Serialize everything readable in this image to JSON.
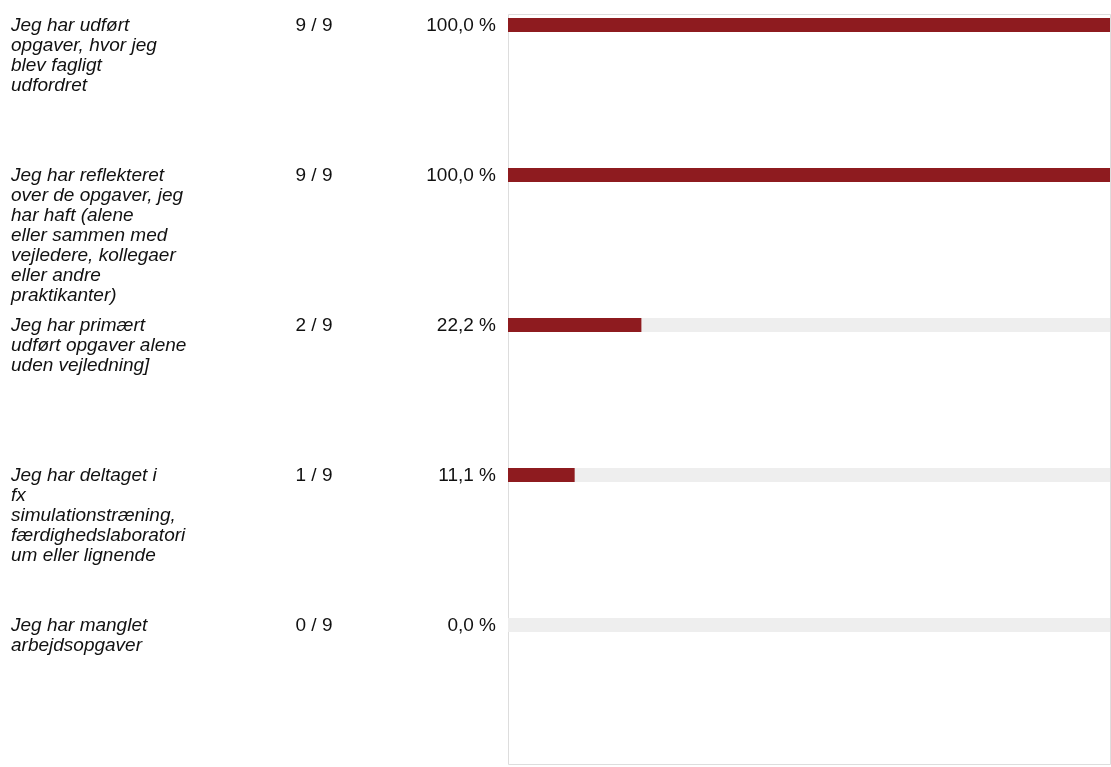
{
  "chart_data": {
    "type": "bar",
    "orientation": "horizontal",
    "stacked": true,
    "categories": [
      "Jeg har udført opgaver, hvor jeg blev fagligt udfordret",
      "Jeg har reflekteret over de opgaver, jeg har haft (alene eller sammen med vejledere, kollegaer eller andre praktikanter)",
      "Jeg har primært udført opgaver alene uden vejledning]",
      "Jeg har deltaget i fx simulationstræning, færdighedslaboratorium eller lignende",
      "Jeg har manglet arbejdsopgaver"
    ],
    "series": [
      {
        "color": "#8e1b1f",
        "values": [
          100.0,
          100.0,
          22.2,
          11.1,
          0.0
        ],
        "value_labels": [
          "100,0 %",
          "100,0 %",
          "22,2 %",
          "11,1 %",
          "0,0 %"
        ]
      },
      {
        "color": "#eeeeee",
        "values": [
          0.0,
          0.0,
          77.8,
          88.9,
          100.0
        ]
      }
    ],
    "xlim": [
      0,
      100
    ],
    "tick_labels": false,
    "annotations": [
      "9 / 9",
      "9 / 9",
      "2 / 9",
      "1 / 9",
      "0 / 9"
    ]
  }
}
